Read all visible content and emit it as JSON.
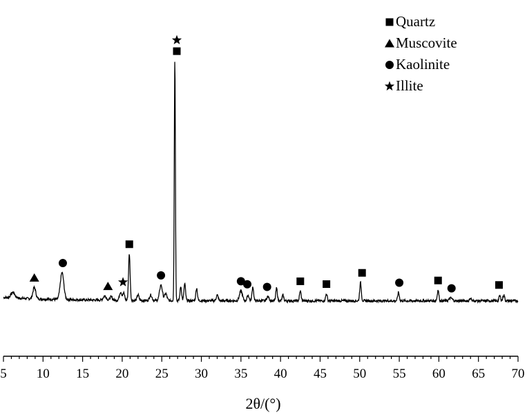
{
  "chart_data": {
    "type": "line",
    "title": "",
    "xlabel": "2θ/(°)",
    "ylabel": "",
    "xlim": [
      5,
      70
    ],
    "ylim": [
      0,
      100
    ],
    "x_ticks": [
      "5",
      "10",
      "15",
      "20",
      "25",
      "30",
      "35",
      "40",
      "45",
      "50",
      "55",
      "60",
      "65",
      "70"
    ],
    "y_axis_visible": false,
    "grid": false,
    "legend_position": "top-right",
    "series": [
      {
        "baseline": 3,
        "peaks": [
          {
            "x": 6.2,
            "height": 2.0,
            "width": 0.25
          },
          {
            "x": 8.9,
            "height": 4.0,
            "width": 0.18
          },
          {
            "x": 12.4,
            "height": 9.5,
            "width": 0.22
          },
          {
            "x": 17.8,
            "height": 1.5,
            "width": 0.2
          },
          {
            "x": 18.6,
            "height": 1.2,
            "width": 0.15
          },
          {
            "x": 19.8,
            "height": 3.0,
            "width": 0.15
          },
          {
            "x": 20.2,
            "height": 2.5,
            "width": 0.12
          },
          {
            "x": 20.9,
            "height": 16.5,
            "width": 0.1
          },
          {
            "x": 22.0,
            "height": 2.0,
            "width": 0.12
          },
          {
            "x": 23.6,
            "height": 2.0,
            "width": 0.15
          },
          {
            "x": 24.9,
            "height": 5.5,
            "width": 0.18
          },
          {
            "x": 25.5,
            "height": 2.5,
            "width": 0.15
          },
          {
            "x": 26.65,
            "height": 86.0,
            "width": 0.07
          },
          {
            "x": 27.4,
            "height": 5.0,
            "width": 0.1
          },
          {
            "x": 27.9,
            "height": 6.0,
            "width": 0.1
          },
          {
            "x": 29.4,
            "height": 4.5,
            "width": 0.1
          },
          {
            "x": 32.0,
            "height": 2.0,
            "width": 0.12
          },
          {
            "x": 35.0,
            "height": 3.5,
            "width": 0.18
          },
          {
            "x": 35.9,
            "height": 2.0,
            "width": 0.12
          },
          {
            "x": 36.5,
            "height": 5.0,
            "width": 0.1
          },
          {
            "x": 38.4,
            "height": 1.5,
            "width": 0.15
          },
          {
            "x": 39.5,
            "height": 4.5,
            "width": 0.1
          },
          {
            "x": 40.3,
            "height": 2.0,
            "width": 0.1
          },
          {
            "x": 42.5,
            "height": 3.5,
            "width": 0.1
          },
          {
            "x": 45.8,
            "height": 2.5,
            "width": 0.1
          },
          {
            "x": 50.1,
            "height": 6.5,
            "width": 0.1
          },
          {
            "x": 54.9,
            "height": 3.0,
            "width": 0.1
          },
          {
            "x": 59.9,
            "height": 3.8,
            "width": 0.1
          },
          {
            "x": 61.5,
            "height": 1.0,
            "width": 0.2
          },
          {
            "x": 64.0,
            "height": 1.0,
            "width": 0.1
          },
          {
            "x": 67.7,
            "height": 1.8,
            "width": 0.1
          },
          {
            "x": 68.2,
            "height": 2.2,
            "width": 0.1
          }
        ]
      }
    ],
    "legend": [
      {
        "symbol": "square",
        "label": "Quartz"
      },
      {
        "symbol": "triangle",
        "label": "Muscovite"
      },
      {
        "symbol": "circle",
        "label": "Kaolinite"
      },
      {
        "symbol": "star",
        "label": "Illite"
      }
    ],
    "annotations": [
      {
        "symbol": "triangle",
        "x": 8.9
      },
      {
        "symbol": "circle",
        "x": 12.5
      },
      {
        "symbol": "triangle",
        "x": 18.2
      },
      {
        "symbol": "star",
        "x": 20.1
      },
      {
        "symbol": "square",
        "x": 20.9
      },
      {
        "symbol": "circle",
        "x": 24.9
      },
      {
        "symbol": "square",
        "x": 26.9
      },
      {
        "symbol": "star",
        "x": 26.9
      },
      {
        "symbol": "circle",
        "x": 35.0
      },
      {
        "symbol": "circle",
        "x": 35.8
      },
      {
        "symbol": "circle",
        "x": 38.3
      },
      {
        "symbol": "square",
        "x": 42.5
      },
      {
        "symbol": "square",
        "x": 45.8
      },
      {
        "symbol": "square",
        "x": 50.3
      },
      {
        "symbol": "circle",
        "x": 55.0
      },
      {
        "symbol": "square",
        "x": 59.9
      },
      {
        "symbol": "circle",
        "x": 61.6
      },
      {
        "symbol": "square",
        "x": 67.6
      }
    ]
  }
}
